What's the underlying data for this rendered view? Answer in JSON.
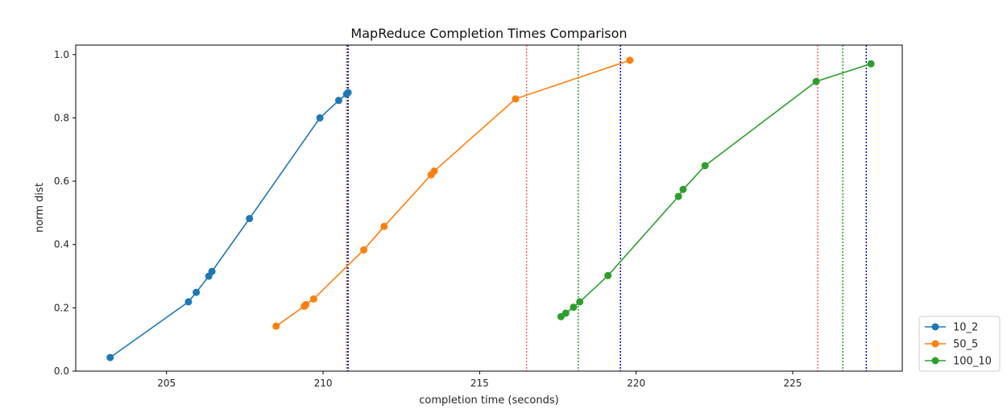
{
  "chart_data": {
    "type": "line",
    "title": "MapReduce Completion Times Comparison",
    "xlabel": "completion time (seconds)",
    "ylabel": "norm dist",
    "xlim": [
      202.1,
      228.5
    ],
    "ylim": [
      0.0,
      1.03
    ],
    "xticks": [
      205,
      210,
      215,
      220,
      225
    ],
    "yticks": [
      0.0,
      0.2,
      0.4,
      0.6,
      0.8,
      1.0
    ],
    "grid": false,
    "legend_position": "outside-bottom-right",
    "series": [
      {
        "name": "10_2",
        "color": "#1f77b4",
        "x": [
          203.2,
          205.7,
          205.95,
          206.35,
          206.45,
          207.65,
          209.9,
          210.5,
          210.75,
          210.8
        ],
        "y": [
          0.043,
          0.219,
          0.249,
          0.3,
          0.315,
          0.482,
          0.8,
          0.855,
          0.875,
          0.88
        ]
      },
      {
        "name": "50_5",
        "color": "#ff7f0e",
        "x": [
          208.5,
          209.4,
          209.45,
          209.7,
          211.3,
          211.95,
          213.45,
          213.55,
          216.15,
          219.8
        ],
        "y": [
          0.142,
          0.205,
          0.21,
          0.228,
          0.383,
          0.457,
          0.62,
          0.632,
          0.86,
          0.982
        ]
      },
      {
        "name": "100_10",
        "color": "#2ca02c",
        "x": [
          217.6,
          217.75,
          218.0,
          218.2,
          219.1,
          221.35,
          221.5,
          222.2,
          225.75,
          227.5
        ],
        "y": [
          0.172,
          0.183,
          0.202,
          0.219,
          0.302,
          0.552,
          0.574,
          0.649,
          0.915,
          0.971
        ]
      }
    ],
    "reference_lines": [
      {
        "series": "10_2",
        "x": 210.75,
        "color": "#ff6666"
      },
      {
        "series": "10_2",
        "x": 210.78,
        "color": "#2ca02c"
      },
      {
        "series": "10_2",
        "x": 210.8,
        "color": "#0000dd"
      },
      {
        "series": "50_5",
        "x": 216.5,
        "color": "#ff6666"
      },
      {
        "series": "50_5",
        "x": 218.15,
        "color": "#2ca02c"
      },
      {
        "series": "50_5",
        "x": 219.5,
        "color": "#0000dd"
      },
      {
        "series": "100_10",
        "x": 225.8,
        "color": "#ff6666"
      },
      {
        "series": "100_10",
        "x": 226.6,
        "color": "#2ca02c"
      },
      {
        "series": "100_10",
        "x": 227.35,
        "color": "#0000dd"
      }
    ]
  }
}
